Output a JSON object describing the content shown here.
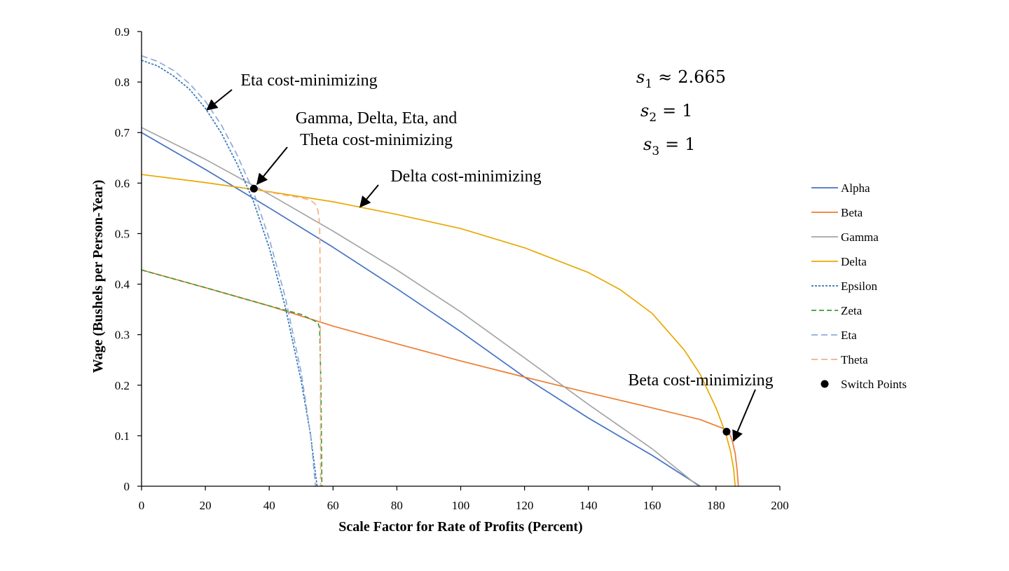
{
  "chart_data": {
    "type": "line",
    "xlabel": "Scale Factor for Rate of Profits (Percent)",
    "ylabel": "Wage (Bushels per Person-Year)",
    "xlim": [
      0,
      200
    ],
    "ylim": [
      0,
      0.9
    ],
    "x_ticks": [
      "0",
      "20",
      "40",
      "60",
      "80",
      "100",
      "120",
      "140",
      "160",
      "180",
      "200"
    ],
    "y_ticks": [
      "0",
      "0.1",
      "0.2",
      "0.3",
      "0.4",
      "0.5",
      "0.6",
      "0.7",
      "0.8",
      "0.9"
    ],
    "grid": false,
    "legend_position": "right",
    "series": [
      {
        "name": "Alpha",
        "color": "#4472C4",
        "dash": "solid",
        "x": [
          0,
          20,
          40,
          60,
          80,
          100,
          120,
          140,
          160,
          175
        ],
        "y": [
          0.7,
          0.627,
          0.551,
          0.473,
          0.391,
          0.306,
          0.216,
          0.135,
          0.061,
          0.0
        ]
      },
      {
        "name": "Beta",
        "color": "#ED7D31",
        "dash": "solid",
        "x": [
          0,
          20,
          40,
          56,
          60,
          80,
          100,
          120,
          140,
          160,
          175,
          182,
          184,
          185,
          186,
          186.6,
          187.0
        ],
        "y": [
          0.428,
          0.393,
          0.357,
          0.325,
          0.317,
          0.282,
          0.248,
          0.216,
          0.185,
          0.155,
          0.132,
          0.115,
          0.107,
          0.092,
          0.065,
          0.032,
          0.0
        ]
      },
      {
        "name": "Gamma",
        "color": "#A5A5A5",
        "dash": "solid",
        "x": [
          0,
          20,
          40,
          60,
          80,
          100,
          120,
          140,
          160,
          174.5
        ],
        "y": [
          0.71,
          0.647,
          0.578,
          0.505,
          0.428,
          0.345,
          0.254,
          0.162,
          0.074,
          0.0
        ]
      },
      {
        "name": "Delta",
        "color": "#E8A900",
        "dash": "solid",
        "x": [
          0,
          20,
          40,
          60,
          80,
          100,
          120,
          140,
          150,
          160,
          170,
          175,
          180,
          183,
          184.5,
          185.5,
          186.0
        ],
        "y": [
          0.617,
          0.601,
          0.583,
          0.563,
          0.538,
          0.51,
          0.472,
          0.423,
          0.389,
          0.342,
          0.27,
          0.222,
          0.155,
          0.105,
          0.07,
          0.035,
          0.0
        ]
      },
      {
        "name": "Epsilon",
        "color": "#2E75B6",
        "dash": "3,2",
        "x": [
          0,
          5,
          10,
          15,
          20,
          25,
          30,
          35,
          40,
          45,
          50,
          53,
          55
        ],
        "y": [
          0.843,
          0.832,
          0.812,
          0.786,
          0.748,
          0.699,
          0.637,
          0.565,
          0.472,
          0.356,
          0.209,
          0.1,
          0.0
        ]
      },
      {
        "name": "Zeta",
        "color": "#3C9A3C",
        "dash": "7,4",
        "x": [
          0,
          20,
          40,
          50,
          54,
          55.3,
          55.8,
          56.2,
          56.5
        ],
        "y": [
          0.428,
          0.393,
          0.357,
          0.34,
          0.328,
          0.323,
          0.313,
          0.2,
          0.0
        ]
      },
      {
        "name": "Eta",
        "color": "#8EA9DB",
        "dash": "9,5",
        "x": [
          0,
          5,
          10,
          15,
          20,
          25,
          30,
          35,
          40,
          45,
          50,
          53,
          54.5
        ],
        "y": [
          0.852,
          0.841,
          0.823,
          0.797,
          0.762,
          0.715,
          0.655,
          0.584,
          0.49,
          0.375,
          0.226,
          0.1,
          0.0
        ]
      },
      {
        "name": "Theta",
        "color": "#F4B183",
        "dash": "9,5",
        "x": [
          35.2,
          40,
          45,
          50,
          53,
          54.5,
          55.3,
          55.8,
          56.0,
          56.1
        ],
        "y": [
          0.589,
          0.582,
          0.576,
          0.571,
          0.566,
          0.558,
          0.545,
          0.52,
          0.4,
          0.0
        ]
      },
      {
        "name": "Switch Points",
        "color": "#000000",
        "type": "scatter",
        "x": [
          35.2,
          183.3
        ],
        "y": [
          0.589,
          0.108
        ]
      }
    ],
    "annotations": [
      {
        "id": "eta",
        "lines": [
          "Eta cost-minimizing"
        ],
        "arrow_to": [
          20.5,
          0.745
        ]
      },
      {
        "id": "gdet",
        "lines": [
          "Gamma, Delta, Eta, and",
          "Theta cost-minimizing"
        ],
        "arrow_to": [
          36.2,
          0.598
        ]
      },
      {
        "id": "delta",
        "lines": [
          "Delta cost-minimizing"
        ],
        "arrow_to": [
          68.5,
          0.553
        ]
      },
      {
        "id": "beta",
        "lines": [
          "Beta cost-minimizing"
        ],
        "arrow_to": [
          185.5,
          0.09
        ]
      }
    ],
    "parameters": [
      {
        "var": "s",
        "sub": "1",
        "rel": "≈",
        "val": "2.665"
      },
      {
        "var": "s",
        "sub": "2",
        "rel": "=",
        "val": "1"
      },
      {
        "var": "s",
        "sub": "3",
        "rel": "=",
        "val": "1"
      }
    ]
  }
}
